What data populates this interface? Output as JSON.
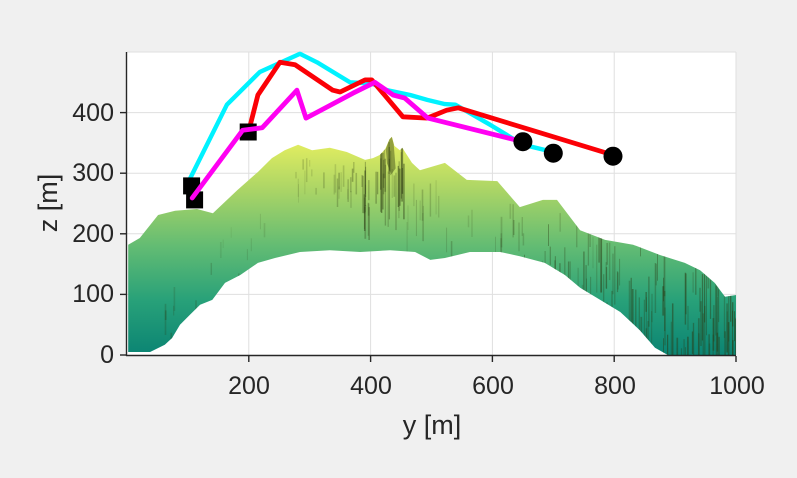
{
  "figure": {
    "background_color": "#f0f0f0",
    "plot_background": "#ffffff"
  },
  "axes": {
    "x_label": "y [m]",
    "y_label": "z [m]",
    "x_tick_labels": [
      "200",
      "400",
      "600",
      "800",
      "1000"
    ],
    "y_tick_labels": [
      "0",
      "100",
      "200",
      "300",
      "400"
    ],
    "tick_color": "#262626",
    "grid_color": "#dfdfdf"
  },
  "chart_data": {
    "type": "line",
    "title": "",
    "xlabel": "y [m]",
    "ylabel": "z [m]",
    "xlim": [
      0,
      1000
    ],
    "ylim": [
      0,
      500
    ],
    "x_ticks": [
      200,
      400,
      600,
      800,
      1000
    ],
    "y_ticks": [
      0,
      100,
      200,
      300,
      400
    ],
    "grid": true,
    "legend": "none",
    "series": [
      {
        "name": "trajectory-cyan",
        "color": "#00f2ff",
        "width": 4.4,
        "points": [
          [
            100,
            284
          ],
          [
            164,
            413
          ],
          [
            218,
            467
          ],
          [
            284,
            497
          ],
          [
            312,
            483
          ],
          [
            366,
            450
          ],
          [
            402,
            448
          ],
          [
            427,
            437
          ],
          [
            465,
            429
          ],
          [
            493,
            421
          ],
          [
            522,
            414
          ],
          [
            539,
            413
          ],
          [
            596,
            380
          ],
          [
            650,
            347
          ],
          [
            700,
            335
          ]
        ]
      },
      {
        "name": "trajectory-red",
        "color": "#fb0006",
        "width": 4.8,
        "points": [
          [
            199,
            366
          ],
          [
            215,
            429
          ],
          [
            251,
            483
          ],
          [
            276,
            479
          ],
          [
            338,
            437
          ],
          [
            350,
            434
          ],
          [
            391,
            454
          ],
          [
            402,
            454
          ],
          [
            453,
            393
          ],
          [
            493,
            391
          ],
          [
            525,
            404
          ],
          [
            544,
            408
          ],
          [
            798,
            330
          ]
        ]
      },
      {
        "name": "trajectory-magenta",
        "color": "#ff00f2",
        "width": 4.8,
        "points": [
          [
            107,
            259
          ],
          [
            190,
            371
          ],
          [
            222,
            375
          ],
          [
            279,
            437
          ],
          [
            294,
            391
          ],
          [
            328,
            409
          ],
          [
            371,
            432
          ],
          [
            407,
            450
          ],
          [
            437,
            429
          ],
          [
            456,
            424
          ],
          [
            494,
            391
          ],
          [
            650,
            352
          ]
        ]
      }
    ],
    "markers": {
      "start_squares": {
        "shape": "square",
        "color": "#000000",
        "size": 17,
        "points": [
          [
            106,
            279
          ],
          [
            111,
            256
          ],
          [
            199,
            368
          ]
        ]
      },
      "end_circles": {
        "shape": "circle",
        "color": "#000000",
        "diameter": 19,
        "points": [
          [
            650,
            352
          ],
          [
            700,
            333
          ],
          [
            798,
            328
          ]
        ]
      }
    },
    "terrain": {
      "name": "terrain-elevation-profile",
      "colormap": "summer",
      "z_max": 360,
      "gradient": [
        [
          "0%",
          "#e9f05f"
        ],
        [
          "25%",
          "#a9d466"
        ],
        [
          "50%",
          "#63bc73"
        ],
        [
          "75%",
          "#28a179"
        ],
        [
          "100%",
          "#0b8473"
        ]
      ],
      "outline": [
        [
          2,
          5
        ],
        [
          2,
          182
        ],
        [
          21,
          193
        ],
        [
          51,
          231
        ],
        [
          79,
          238
        ],
        [
          115,
          241
        ],
        [
          141,
          234
        ],
        [
          181,
          272
        ],
        [
          215,
          302
        ],
        [
          238,
          325
        ],
        [
          259,
          338
        ],
        [
          281,
          347
        ],
        [
          304,
          338
        ],
        [
          333,
          342
        ],
        [
          361,
          335
        ],
        [
          391,
          322
        ],
        [
          404,
          325
        ],
        [
          415,
          330
        ],
        [
          424,
          340
        ],
        [
          431,
          356
        ],
        [
          435,
          360
        ],
        [
          439,
          345
        ],
        [
          448,
          338
        ],
        [
          452,
          342
        ],
        [
          468,
          317
        ],
        [
          481,
          305
        ],
        [
          522,
          317
        ],
        [
          558,
          289
        ],
        [
          608,
          287
        ],
        [
          645,
          244
        ],
        [
          683,
          256
        ],
        [
          706,
          256
        ],
        [
          744,
          206
        ],
        [
          785,
          190
        ],
        [
          831,
          182
        ],
        [
          875,
          165
        ],
        [
          916,
          152
        ],
        [
          941,
          140
        ],
        [
          965,
          119
        ],
        [
          982,
          96
        ],
        [
          1000,
          99
        ],
        [
          1000,
          0
        ],
        [
          888,
          0
        ],
        [
          867,
          12
        ],
        [
          842,
          41
        ],
        [
          810,
          71
        ],
        [
          777,
          91
        ],
        [
          744,
          111
        ],
        [
          719,
          132
        ],
        [
          686,
          152
        ],
        [
          645,
          163
        ],
        [
          613,
          170
        ],
        [
          563,
          170
        ],
        [
          522,
          160
        ],
        [
          498,
          157
        ],
        [
          473,
          170
        ],
        [
          432,
          173
        ],
        [
          383,
          170
        ],
        [
          333,
          173
        ],
        [
          284,
          170
        ],
        [
          243,
          160
        ],
        [
          215,
          152
        ],
        [
          186,
          132
        ],
        [
          161,
          119
        ],
        [
          140,
          91
        ],
        [
          120,
          83
        ],
        [
          103,
          66
        ],
        [
          87,
          50
        ],
        [
          74,
          28
        ],
        [
          62,
          17
        ],
        [
          38,
          5
        ]
      ]
    }
  }
}
